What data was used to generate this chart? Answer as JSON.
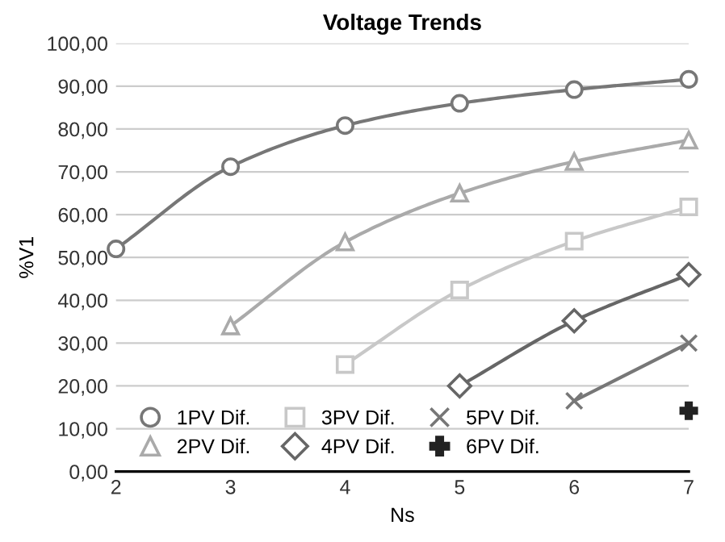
{
  "chart_data": {
    "type": "line",
    "title": "Voltage Trends",
    "xlabel": "Ns",
    "ylabel": "%V1",
    "x": [
      2,
      3,
      4,
      5,
      6,
      7
    ],
    "xlim": [
      2,
      7
    ],
    "xticks": [
      2,
      3,
      4,
      5,
      6,
      7
    ],
    "ylim": [
      0,
      100
    ],
    "yticks": [
      {
        "value": 0,
        "label": "0,00"
      },
      {
        "value": 10,
        "label": "10,00"
      },
      {
        "value": 20,
        "label": "20,00"
      },
      {
        "value": 30,
        "label": "30,00"
      },
      {
        "value": 40,
        "label": "40,00"
      },
      {
        "value": 50,
        "label": "50,00"
      },
      {
        "value": 60,
        "label": "60,00"
      },
      {
        "value": 70,
        "label": "70,00"
      },
      {
        "value": 80,
        "label": "80,00"
      },
      {
        "value": 90,
        "label": "90,00"
      },
      {
        "value": 100,
        "label": "100,00"
      }
    ],
    "grid": "y",
    "legend": "bottom left",
    "series": [
      {
        "name": "1PV Dif.",
        "color": "#777777",
        "marker": "circle",
        "values": [
          52.0,
          71.2,
          80.8,
          86.0,
          89.2,
          91.6
        ]
      },
      {
        "name": "2PV Dif.",
        "color": "#aaaaaa",
        "marker": "triangle",
        "values": [
          null,
          34.0,
          53.6,
          65.0,
          72.4,
          77.4
        ]
      },
      {
        "name": "3PV Dif.",
        "color": "#c8c8c8",
        "marker": "square",
        "values": [
          null,
          null,
          25.0,
          42.4,
          53.8,
          61.8
        ]
      },
      {
        "name": "4PV Dif.",
        "color": "#666666",
        "marker": "diamond",
        "values": [
          null,
          null,
          null,
          20.0,
          35.2,
          46.0
        ]
      },
      {
        "name": "5PV Dif.",
        "color": "#777777",
        "marker": "cross",
        "values": [
          null,
          null,
          null,
          null,
          16.5,
          30.0
        ]
      },
      {
        "name": "6PV Dif.",
        "color": "#222222",
        "marker": "plus",
        "values": [
          null,
          null,
          null,
          null,
          null,
          14.2
        ]
      }
    ]
  }
}
